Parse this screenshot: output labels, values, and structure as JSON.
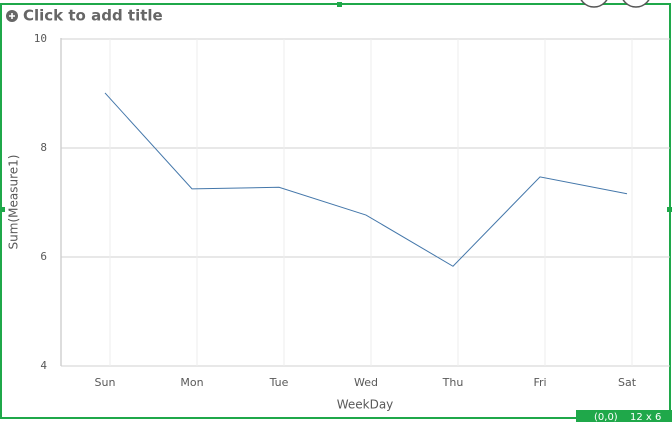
{
  "ui": {
    "title_placeholder": "Click to add title",
    "position": "(0,0)",
    "size": "12 x 6"
  },
  "chart_data": {
    "type": "line",
    "categories": [
      "Sun",
      "Mon",
      "Tue",
      "Wed",
      "Thu",
      "Fri",
      "Sat"
    ],
    "values": [
      9.01,
      7.25,
      7.28,
      6.77,
      5.83,
      7.47,
      7.16
    ],
    "color": "#4477aa",
    "x_label": "WeekDay",
    "y_label": "Sum(Measure1)",
    "ylim": [
      4,
      10
    ],
    "yticks": [
      4,
      6,
      8,
      10
    ],
    "grid": true
  }
}
